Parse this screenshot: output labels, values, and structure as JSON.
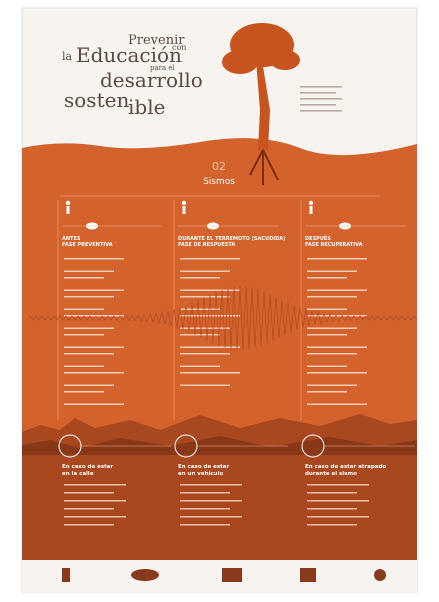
{
  "header": {
    "title_lines": [
      "Prevenir",
      "con",
      "la",
      "Educación",
      "para el",
      "desarrollo",
      "sosten",
      "ible"
    ]
  },
  "section": {
    "number": "02",
    "title": "Sismos"
  },
  "phases": [
    {
      "heading": [
        "ANTES",
        "FASE PREVENTIVA"
      ]
    },
    {
      "heading": [
        "DURANTE EL TERREMOTO (SACUDIDA)",
        "FASE DE RESPUESTA"
      ]
    },
    {
      "heading": [
        "DESPUÉS",
        "FASE RECUPERATIVA"
      ]
    }
  ],
  "cases": [
    {
      "heading": [
        "En caso de estar",
        "en la calle"
      ]
    },
    {
      "heading": [
        "En caso de estar",
        "en un vehículo"
      ]
    },
    {
      "heading": [
        "En caso de estar atrapado",
        "durante el sismo"
      ]
    }
  ]
}
